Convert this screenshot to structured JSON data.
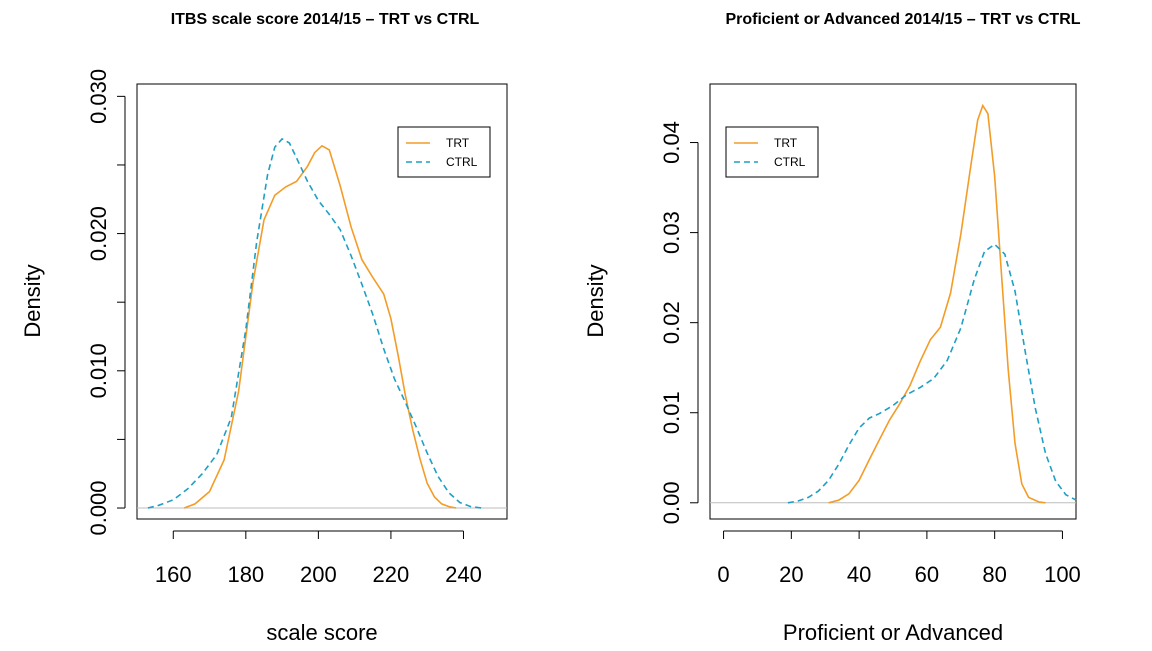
{
  "colors": {
    "trt": "#f39c27",
    "ctrl": "#1f9fc4",
    "zero_line": "#bdbdbd",
    "frame": "#000000"
  },
  "chart_data": [
    {
      "type": "line",
      "title": "ITBS scale score 2014/15 – TRT vs CTRL",
      "xlabel": "scale score",
      "ylabel": "Density",
      "xlim": [
        150,
        252
      ],
      "ylim": [
        -0.0008,
        0.0309
      ],
      "xticks": [
        160,
        180,
        200,
        220,
        240
      ],
      "xtick_labels": [
        "160",
        "180",
        "200",
        "220",
        "240"
      ],
      "yticks": [
        0,
        0.005,
        0.01,
        0.015,
        0.02,
        0.025,
        0.03
      ],
      "ytick_labels": [
        "0.000",
        "",
        "0.010",
        "",
        "0.020",
        "",
        "0.030"
      ],
      "legend": "top-right",
      "grid": false,
      "series": [
        {
          "name": "TRT",
          "style": "solid",
          "x": [
            163,
            166,
            170,
            174,
            178,
            182,
            185,
            188,
            191,
            194,
            197,
            199,
            201,
            203,
            206,
            209,
            212,
            215,
            218,
            220,
            222,
            224,
            226,
            228,
            230,
            232,
            234,
            236,
            238
          ],
          "y": [
            0.0,
            0.0003,
            0.0012,
            0.0035,
            0.0085,
            0.0165,
            0.021,
            0.0228,
            0.0234,
            0.0238,
            0.0249,
            0.0259,
            0.0264,
            0.0261,
            0.0235,
            0.0205,
            0.0181,
            0.0168,
            0.0156,
            0.0138,
            0.0111,
            0.0082,
            0.0057,
            0.0036,
            0.0018,
            0.0008,
            0.0003,
            0.0001,
            0.0
          ]
        },
        {
          "name": "CTRL",
          "style": "dashed",
          "x": [
            153,
            156,
            160,
            164,
            168,
            172,
            176,
            180,
            183,
            186,
            188,
            190,
            192,
            194,
            197,
            200,
            203,
            206,
            209,
            212,
            215,
            218,
            221,
            224,
            227,
            230,
            233,
            236,
            239,
            242,
            245
          ],
          "y": [
            0.0,
            0.0002,
            0.0006,
            0.0014,
            0.0025,
            0.0039,
            0.0066,
            0.013,
            0.0194,
            0.0243,
            0.0263,
            0.0269,
            0.0266,
            0.0255,
            0.0238,
            0.0224,
            0.0214,
            0.0203,
            0.0184,
            0.0163,
            0.0141,
            0.0116,
            0.0094,
            0.0077,
            0.0059,
            0.004,
            0.0023,
            0.0011,
            0.0004,
            0.0001,
            0.0
          ]
        }
      ]
    },
    {
      "type": "line",
      "title": "Proficient or Advanced 2014/15 – TRT vs CTRL",
      "xlabel": "Proficient or Advanced",
      "ylabel": "Density",
      "xlim": [
        -4,
        104
      ],
      "ylim": [
        -0.0018,
        0.0465
      ],
      "xticks": [
        0,
        20,
        40,
        60,
        80,
        100
      ],
      "xtick_labels": [
        "0",
        "20",
        "40",
        "60",
        "80",
        "100"
      ],
      "yticks": [
        0,
        0.01,
        0.02,
        0.03,
        0.04
      ],
      "ytick_labels": [
        "0.00",
        "0.01",
        "0.02",
        "0.03",
        "0.04"
      ],
      "legend": "top-left",
      "grid": false,
      "series": [
        {
          "name": "TRT",
          "style": "solid",
          "x": [
            31,
            34,
            37,
            40,
            43,
            46,
            49,
            52,
            55,
            58,
            61,
            64,
            67,
            70,
            73,
            75,
            76.5,
            78,
            80,
            82,
            84,
            86,
            88,
            90,
            93,
            95
          ],
          "y": [
            0.0,
            0.0003,
            0.001,
            0.0025,
            0.0048,
            0.007,
            0.0092,
            0.011,
            0.013,
            0.0157,
            0.0181,
            0.0195,
            0.0233,
            0.0298,
            0.0375,
            0.0425,
            0.0441,
            0.0432,
            0.0362,
            0.0255,
            0.0148,
            0.0066,
            0.0021,
            0.0006,
            0.0001,
            0.0
          ]
        },
        {
          "name": "CTRL",
          "style": "dashed",
          "x": [
            19,
            22,
            25,
            28,
            31,
            34,
            37,
            40,
            43,
            46,
            50,
            54,
            58,
            62,
            66,
            70,
            74,
            77,
            80,
            83,
            86,
            89,
            92,
            95,
            98,
            101,
            104
          ],
          "y": [
            0.0,
            0.0002,
            0.0006,
            0.0013,
            0.0025,
            0.0043,
            0.0064,
            0.0083,
            0.0094,
            0.0099,
            0.0108,
            0.012,
            0.0128,
            0.0138,
            0.0158,
            0.0194,
            0.0248,
            0.0279,
            0.0287,
            0.0276,
            0.0235,
            0.0168,
            0.0105,
            0.0055,
            0.0024,
            0.0009,
            0.0003
          ]
        }
      ]
    }
  ]
}
